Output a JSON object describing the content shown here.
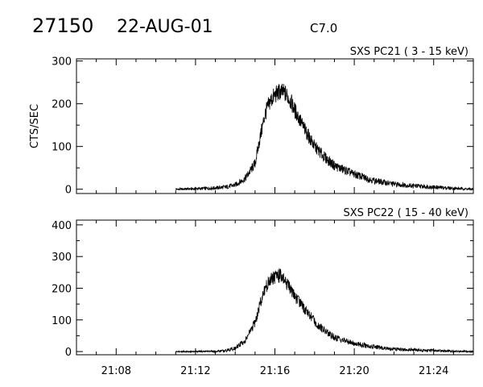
{
  "header": {
    "orbit": "27150",
    "date": "22-AUG-01",
    "flare_class": "C7.0"
  },
  "chart_data": [
    {
      "type": "line",
      "title": "SXS PC21  (  3 - 15 keV)",
      "ylabel": "CTS/SEC",
      "xlim": [
        "21:06",
        "21:26"
      ],
      "ylim": [
        -10,
        305
      ],
      "y_ticks": [
        0,
        100,
        200,
        300
      ],
      "x_ticks": [
        "21:08",
        "21:12",
        "21:16",
        "21:20",
        "21:24"
      ],
      "x_tick_labels_shown": false,
      "series": [
        {
          "x": [
            "21:11",
            "21:12",
            "21:13",
            "21:13:30",
            "21:14",
            "21:14:30",
            "21:15",
            "21:15:15",
            "21:15:30",
            "21:15:45",
            "21:16",
            "21:16:15",
            "21:16:30",
            "21:16:45",
            "21:17",
            "21:17:30",
            "21:18",
            "21:18:30",
            "21:19",
            "21:20",
            "21:21",
            "21:22",
            "21:23",
            "21:24",
            "21:25",
            "21:26"
          ],
          "y": [
            0,
            1,
            3,
            5,
            10,
            25,
            60,
            120,
            175,
            205,
            220,
            228,
            225,
            210,
            185,
            140,
            100,
            75,
            55,
            35,
            20,
            12,
            8,
            5,
            2,
            0
          ]
        }
      ]
    },
    {
      "type": "line",
      "title": "SXS PC22  ( 15 - 40 keV)",
      "ylabel": "",
      "xlim": [
        "21:06",
        "21:26"
      ],
      "ylim": [
        -10,
        415
      ],
      "y_ticks": [
        0,
        100,
        200,
        300,
        400
      ],
      "x_ticks": [
        "21:08",
        "21:12",
        "21:16",
        "21:20",
        "21:24"
      ],
      "x_tick_labels_shown": true,
      "series": [
        {
          "x": [
            "21:11",
            "21:12",
            "21:13",
            "21:13:30",
            "21:14",
            "21:14:30",
            "21:15",
            "21:15:15",
            "21:15:30",
            "21:15:45",
            "21:16",
            "21:16:15",
            "21:16:30",
            "21:16:45",
            "21:17",
            "21:17:30",
            "21:18",
            "21:18:30",
            "21:19",
            "21:20",
            "21:21",
            "21:22",
            "21:23",
            "21:24",
            "21:25",
            "21:26"
          ],
          "y": [
            0,
            0,
            1,
            3,
            10,
            35,
            90,
            150,
            200,
            225,
            235,
            240,
            225,
            200,
            175,
            135,
            95,
            65,
            45,
            25,
            15,
            8,
            5,
            3,
            1,
            0
          ]
        }
      ]
    }
  ]
}
